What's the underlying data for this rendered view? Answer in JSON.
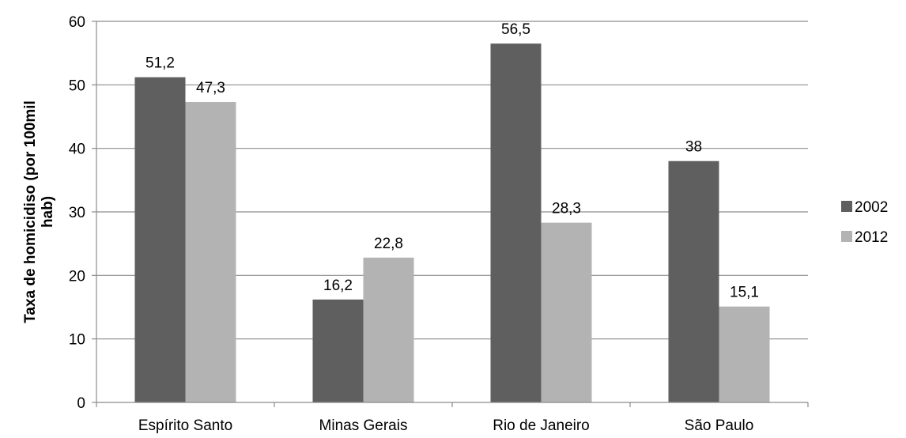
{
  "chart_data": {
    "type": "bar",
    "title": "",
    "xlabel": "",
    "ylabel_lines": [
      "Taxa de homicidiso (por 100mil",
      "hab)"
    ],
    "categories": [
      "Espírito Santo",
      "Minas Gerais",
      "Rio de Janeiro",
      "São Paulo"
    ],
    "series": [
      {
        "name": "2002",
        "color": "#5f5f5f",
        "values": [
          51.2,
          16.2,
          56.5,
          38
        ],
        "labels": [
          "51,2",
          "16,2",
          "56,5",
          "38"
        ]
      },
      {
        "name": "2012",
        "color": "#b3b3b3",
        "values": [
          47.3,
          22.8,
          28.3,
          15.1
        ],
        "labels": [
          "47,3",
          "22,8",
          "28,3",
          "15,1"
        ]
      }
    ],
    "ylim": [
      0,
      60
    ],
    "yticks": [
      0,
      10,
      20,
      30,
      40,
      50,
      60
    ],
    "grid": true,
    "legend_position": "right"
  }
}
